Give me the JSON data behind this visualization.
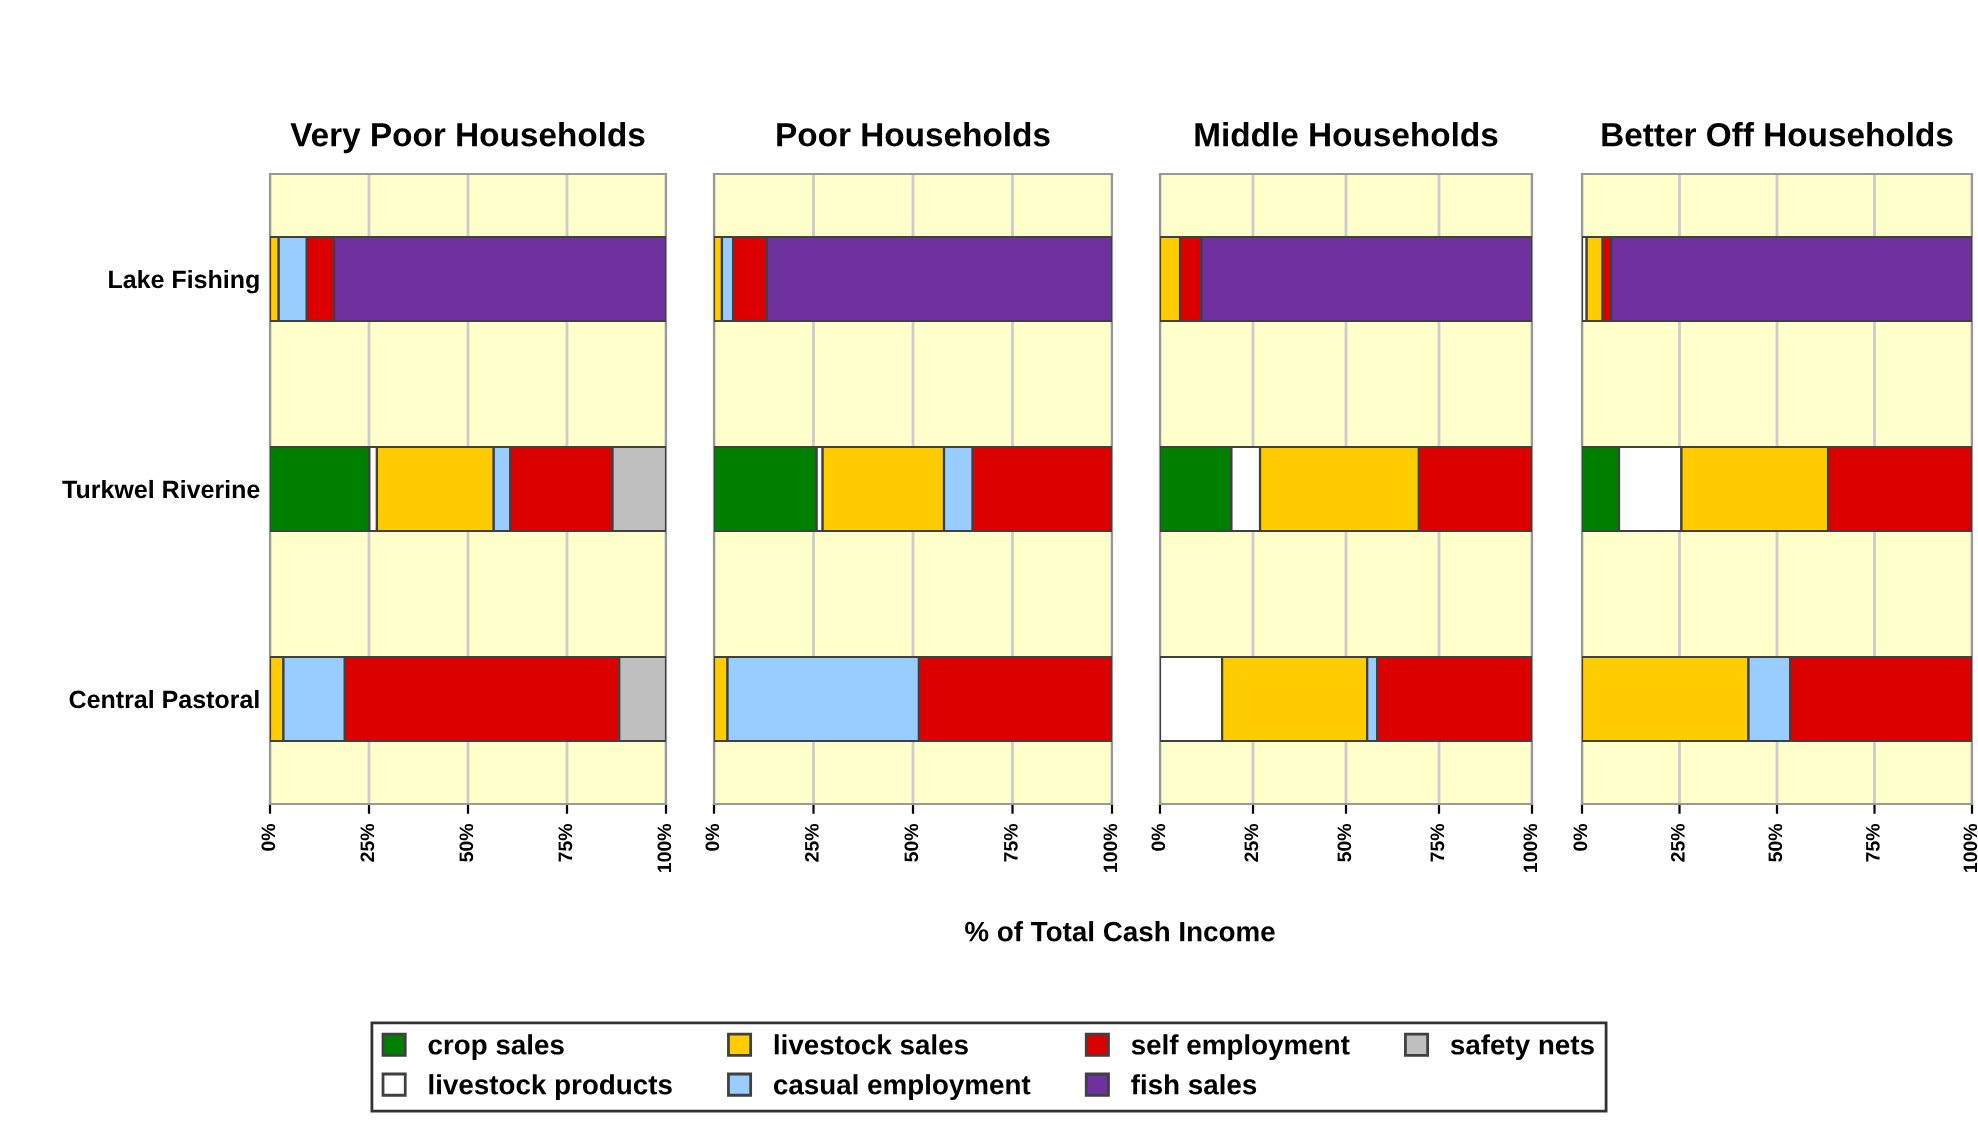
{
  "chart_data": [
    {
      "type": "bar",
      "orientation": "horizontal",
      "stacked": true,
      "title": "Very Poor Households",
      "annotations": [
        "% of Total Cash Income"
      ],
      "categories": [
        "Lake Fishing",
        "Turkwel Riverine",
        "Central Pastoral"
      ],
      "xlim": [
        0,
        100
      ],
      "xticks": [
        {
          "value": 0,
          "label": "0%"
        },
        {
          "value": 25,
          "label": "25%"
        },
        {
          "value": 50,
          "label": "50%"
        },
        {
          "value": 75,
          "label": "75%"
        },
        {
          "value": 100,
          "label": "100%"
        }
      ],
      "grid": "x",
      "legend": "bottom",
      "series": [
        {
          "name": "crop sales",
          "color": "#008000",
          "values": [
            null,
            25.1,
            null
          ]
        },
        {
          "name": "livestock products",
          "color": "#ffffff",
          "values": [
            null,
            1.9,
            null
          ]
        },
        {
          "name": "livestock sales",
          "color": "#ffcc00",
          "values": [
            2.2,
            29.5,
            3.4
          ]
        },
        {
          "name": "casual employment",
          "color": "#99ccff",
          "values": [
            7.1,
            4.2,
            15.5
          ]
        },
        {
          "name": "self employment",
          "color": "#dd0000",
          "values": [
            6.9,
            25.8,
            69.3
          ]
        },
        {
          "name": "fish sales",
          "color": "#7030a0",
          "values": [
            83.8,
            null,
            null
          ]
        },
        {
          "name": "safety nets",
          "color": "#bfbfbf",
          "values": [
            null,
            13.5,
            11.8
          ]
        }
      ]
    },
    {
      "type": "bar",
      "orientation": "horizontal",
      "stacked": true,
      "title": "Poor Households",
      "categories": [
        null,
        null,
        null
      ],
      "xlim": [
        0,
        100
      ],
      "xticks": [
        {
          "value": 0,
          "label": "0%"
        },
        {
          "value": 25,
          "label": "25%"
        },
        {
          "value": 50,
          "label": "50%"
        },
        {
          "value": 75,
          "label": "75%"
        },
        {
          "value": 100,
          "label": "100%"
        }
      ],
      "grid": "x",
      "tick_labels": "x",
      "series": [
        {
          "color": "#008000",
          "values": [
            null,
            25.8,
            null
          ]
        },
        {
          "color": "#ffffff",
          "values": [
            null,
            1.5,
            null
          ]
        },
        {
          "color": "#ffcc00",
          "values": [
            2.0,
            30.5,
            3.4
          ]
        },
        {
          "color": "#99ccff",
          "values": [
            2.8,
            7.2,
            48.1
          ]
        },
        {
          "color": "#dd0000",
          "values": [
            8.5,
            35.0,
            48.5
          ]
        },
        {
          "color": "#7030a0",
          "values": [
            86.7,
            null,
            null
          ]
        }
      ]
    },
    {
      "type": "bar",
      "orientation": "horizontal",
      "stacked": true,
      "title": "Middle Households",
      "categories": [
        null,
        null,
        null
      ],
      "xlim": [
        0,
        100
      ],
      "xticks": [
        {
          "value": 0,
          "label": "0%"
        },
        {
          "value": 25,
          "label": "25%"
        },
        {
          "value": 50,
          "label": "50%"
        },
        {
          "value": 75,
          "label": "75%"
        },
        {
          "value": 100,
          "label": "100%"
        }
      ],
      "grid": "x",
      "tick_labels": "x",
      "series": [
        {
          "color": "#008000",
          "values": [
            null,
            19.2,
            null
          ]
        },
        {
          "color": "#ffffff",
          "values": [
            null,
            7.7,
            16.7
          ]
        },
        {
          "color": "#ffcc00",
          "values": [
            5.4,
            42.7,
            39.0
          ]
        },
        {
          "color": "#99ccff",
          "values": [
            null,
            null,
            2.7
          ]
        },
        {
          "color": "#dd0000",
          "values": [
            5.7,
            30.4,
            41.6
          ]
        },
        {
          "color": "#7030a0",
          "values": [
            88.9,
            null,
            null
          ]
        }
      ]
    },
    {
      "type": "bar",
      "orientation": "horizontal",
      "stacked": true,
      "title": "Better Off Households",
      "categories": [
        null,
        null,
        null
      ],
      "xlim": [
        0,
        100
      ],
      "xticks": [
        {
          "value": 0,
          "label": "0%"
        },
        {
          "value": 25,
          "label": "25%"
        },
        {
          "value": 50,
          "label": "50%"
        },
        {
          "value": 75,
          "label": "75%"
        },
        {
          "value": 100,
          "label": "100%"
        }
      ],
      "grid": "x",
      "tick_labels": "x",
      "series": [
        {
          "color": "#008000",
          "values": [
            null,
            9.5,
            null
          ]
        },
        {
          "color": "#ffffff",
          "values": [
            1.2,
            16.0,
            null
          ]
        },
        {
          "color": "#ffcc00",
          "values": [
            4.1,
            37.6,
            42.7
          ]
        },
        {
          "color": "#99ccff",
          "values": [
            null,
            null,
            10.7
          ]
        },
        {
          "color": "#dd0000",
          "values": [
            2.2,
            36.9,
            46.6
          ]
        },
        {
          "color": "#7030a0",
          "values": [
            92.5,
            null,
            null
          ]
        }
      ]
    }
  ]
}
